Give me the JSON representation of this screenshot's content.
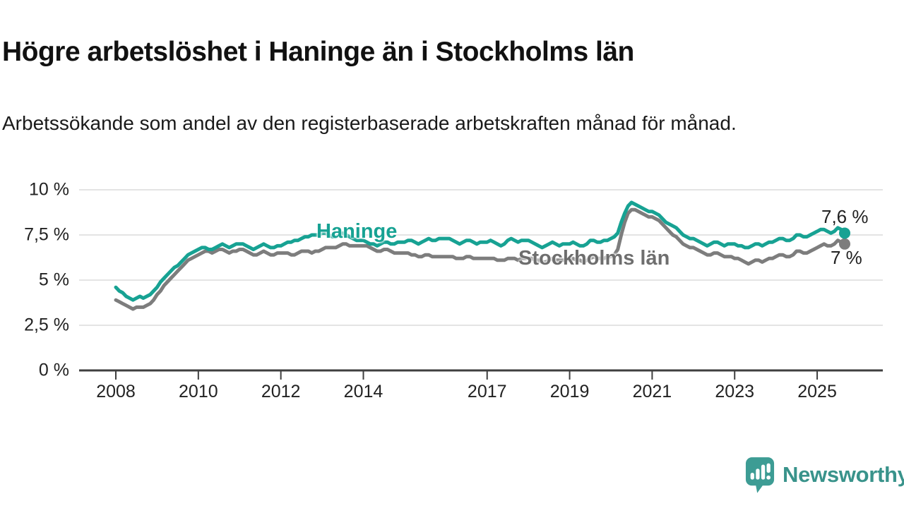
{
  "header": {
    "title": "Högre arbetslöshet i Haninge än i Stockholms län",
    "subtitle": "Arbetssökande som andel av den registerbaserade arbetskraften månad för månad."
  },
  "branding": {
    "logo_text": "Newsworthy",
    "logo_color": "#3d9c94",
    "logo_text_color": "#39938b",
    "logo_icon": "speech-bubble-bar-chart-icon"
  },
  "colors": {
    "haninge_line": "#17a293",
    "stockholm_line": "#7d7d7d",
    "stockholm_label": "#6e6e6e",
    "gridline": "#dcdcdc",
    "axis": "#3f3f3f",
    "value_label": "#222222"
  },
  "chart_data": {
    "type": "line",
    "title": "Högre arbetslöshet i Haninge än i Stockholms län",
    "subtitle": "Arbetssökande som andel av den registerbaserade arbetskraften månad för månad.",
    "x_start": "2008-01",
    "x_end": "2025-09",
    "x_interval": "monthly",
    "ylim": [
      0,
      10
    ],
    "grid": "horizontal",
    "legend_position": "inline-line-labels",
    "yticks": [
      {
        "label": "10 %",
        "value": 10
      },
      {
        "label": "7,5 %",
        "value": 7.5
      },
      {
        "label": "5 %",
        "value": 5
      },
      {
        "label": "2,5 %",
        "value": 2.5
      },
      {
        "label": "0 %",
        "value": 0
      }
    ],
    "xticks": [
      {
        "label": "2008",
        "year": 2008
      },
      {
        "label": "2010",
        "year": 2010
      },
      {
        "label": "2012",
        "year": 2012
      },
      {
        "label": "2014",
        "year": 2014
      },
      {
        "label": "2017",
        "year": 2017
      },
      {
        "label": "2019",
        "year": 2019
      },
      {
        "label": "2021",
        "year": 2021
      },
      {
        "label": "2023",
        "year": 2023
      },
      {
        "label": "2025",
        "year": 2025
      }
    ],
    "series": [
      {
        "name": "Haninge",
        "label": "Haninge",
        "end_label": "7,6 %",
        "color": "#17a293",
        "values": [
          4.6,
          4.4,
          4.3,
          4.1,
          4.0,
          3.9,
          4.0,
          4.1,
          4.0,
          4.1,
          4.2,
          4.4,
          4.6,
          4.9,
          5.1,
          5.3,
          5.5,
          5.7,
          5.8,
          6.0,
          6.2,
          6.4,
          6.5,
          6.6,
          6.7,
          6.8,
          6.8,
          6.7,
          6.7,
          6.8,
          6.9,
          7.0,
          6.9,
          6.8,
          6.9,
          7.0,
          7.0,
          7.0,
          6.9,
          6.8,
          6.7,
          6.8,
          6.9,
          7.0,
          6.9,
          6.8,
          6.8,
          6.9,
          6.9,
          7.0,
          7.1,
          7.1,
          7.2,
          7.2,
          7.3,
          7.4,
          7.4,
          7.5,
          7.5,
          7.5,
          7.6,
          7.6,
          7.5,
          7.4,
          7.4,
          7.5,
          7.6,
          7.5,
          7.4,
          7.3,
          7.2,
          7.2,
          7.2,
          7.1,
          7.0,
          7.0,
          6.9,
          7.0,
          7.1,
          7.1,
          7.0,
          7.0,
          7.1,
          7.1,
          7.1,
          7.2,
          7.2,
          7.1,
          7.0,
          7.1,
          7.2,
          7.3,
          7.2,
          7.2,
          7.3,
          7.3,
          7.3,
          7.3,
          7.2,
          7.1,
          7.0,
          7.1,
          7.2,
          7.2,
          7.1,
          7.0,
          7.1,
          7.1,
          7.1,
          7.2,
          7.1,
          7.0,
          6.9,
          7.0,
          7.2,
          7.3,
          7.2,
          7.1,
          7.2,
          7.2,
          7.2,
          7.1,
          7.0,
          6.9,
          6.8,
          6.9,
          7.0,
          7.1,
          7.0,
          6.9,
          7.0,
          7.0,
          7.0,
          7.1,
          7.0,
          6.9,
          6.9,
          7.0,
          7.2,
          7.2,
          7.1,
          7.1,
          7.2,
          7.2,
          7.3,
          7.4,
          7.6,
          8.2,
          8.7,
          9.1,
          9.3,
          9.2,
          9.1,
          9.0,
          8.9,
          8.8,
          8.8,
          8.7,
          8.6,
          8.4,
          8.2,
          8.1,
          8.0,
          7.9,
          7.7,
          7.5,
          7.4,
          7.3,
          7.3,
          7.2,
          7.1,
          7.0,
          6.9,
          7.0,
          7.1,
          7.1,
          7.0,
          6.9,
          7.0,
          7.0,
          7.0,
          6.9,
          6.9,
          6.8,
          6.8,
          6.9,
          7.0,
          7.0,
          6.9,
          7.0,
          7.1,
          7.1,
          7.2,
          7.3,
          7.3,
          7.2,
          7.2,
          7.3,
          7.5,
          7.5,
          7.4,
          7.4,
          7.5,
          7.6,
          7.7,
          7.8,
          7.8,
          7.7,
          7.6,
          7.7,
          7.9,
          7.8,
          7.6
        ]
      },
      {
        "name": "Stockholms län",
        "label": "Stockholms län",
        "end_label": "7 %",
        "color": "#7d7d7d",
        "values": [
          3.9,
          3.8,
          3.7,
          3.6,
          3.5,
          3.4,
          3.5,
          3.5,
          3.5,
          3.6,
          3.7,
          3.9,
          4.2,
          4.4,
          4.7,
          4.9,
          5.1,
          5.3,
          5.5,
          5.7,
          5.9,
          6.1,
          6.2,
          6.3,
          6.4,
          6.5,
          6.6,
          6.6,
          6.5,
          6.6,
          6.7,
          6.7,
          6.6,
          6.5,
          6.6,
          6.6,
          6.7,
          6.7,
          6.6,
          6.5,
          6.4,
          6.4,
          6.5,
          6.6,
          6.5,
          6.4,
          6.4,
          6.5,
          6.5,
          6.5,
          6.5,
          6.4,
          6.4,
          6.5,
          6.6,
          6.6,
          6.6,
          6.5,
          6.6,
          6.6,
          6.7,
          6.8,
          6.8,
          6.8,
          6.8,
          6.9,
          7.0,
          7.0,
          6.9,
          6.9,
          6.9,
          6.9,
          6.9,
          6.9,
          6.8,
          6.7,
          6.6,
          6.6,
          6.7,
          6.7,
          6.6,
          6.5,
          6.5,
          6.5,
          6.5,
          6.5,
          6.4,
          6.4,
          6.3,
          6.3,
          6.4,
          6.4,
          6.3,
          6.3,
          6.3,
          6.3,
          6.3,
          6.3,
          6.3,
          6.2,
          6.2,
          6.2,
          6.3,
          6.3,
          6.2,
          6.2,
          6.2,
          6.2,
          6.2,
          6.2,
          6.2,
          6.1,
          6.1,
          6.1,
          6.2,
          6.2,
          6.2,
          6.1,
          6.2,
          6.2,
          6.2,
          6.2,
          6.1,
          6.1,
          6.0,
          6.0,
          6.1,
          6.2,
          6.1,
          6.1,
          6.1,
          6.1,
          6.1,
          6.2,
          6.1,
          6.1,
          6.0,
          6.1,
          6.2,
          6.3,
          6.2,
          6.2,
          6.2,
          6.3,
          6.3,
          6.4,
          6.7,
          7.5,
          8.2,
          8.7,
          8.9,
          8.9,
          8.8,
          8.7,
          8.6,
          8.5,
          8.5,
          8.4,
          8.3,
          8.1,
          7.9,
          7.7,
          7.5,
          7.4,
          7.2,
          7.0,
          6.9,
          6.8,
          6.8,
          6.7,
          6.6,
          6.5,
          6.4,
          6.4,
          6.5,
          6.5,
          6.4,
          6.3,
          6.3,
          6.3,
          6.2,
          6.2,
          6.1,
          6.0,
          5.9,
          6.0,
          6.1,
          6.1,
          6.0,
          6.1,
          6.2,
          6.2,
          6.3,
          6.4,
          6.4,
          6.3,
          6.3,
          6.4,
          6.6,
          6.6,
          6.5,
          6.5,
          6.6,
          6.7,
          6.8,
          6.9,
          7.0,
          6.9,
          6.9,
          7.0,
          7.2,
          7.1,
          7.0
        ]
      }
    ]
  }
}
